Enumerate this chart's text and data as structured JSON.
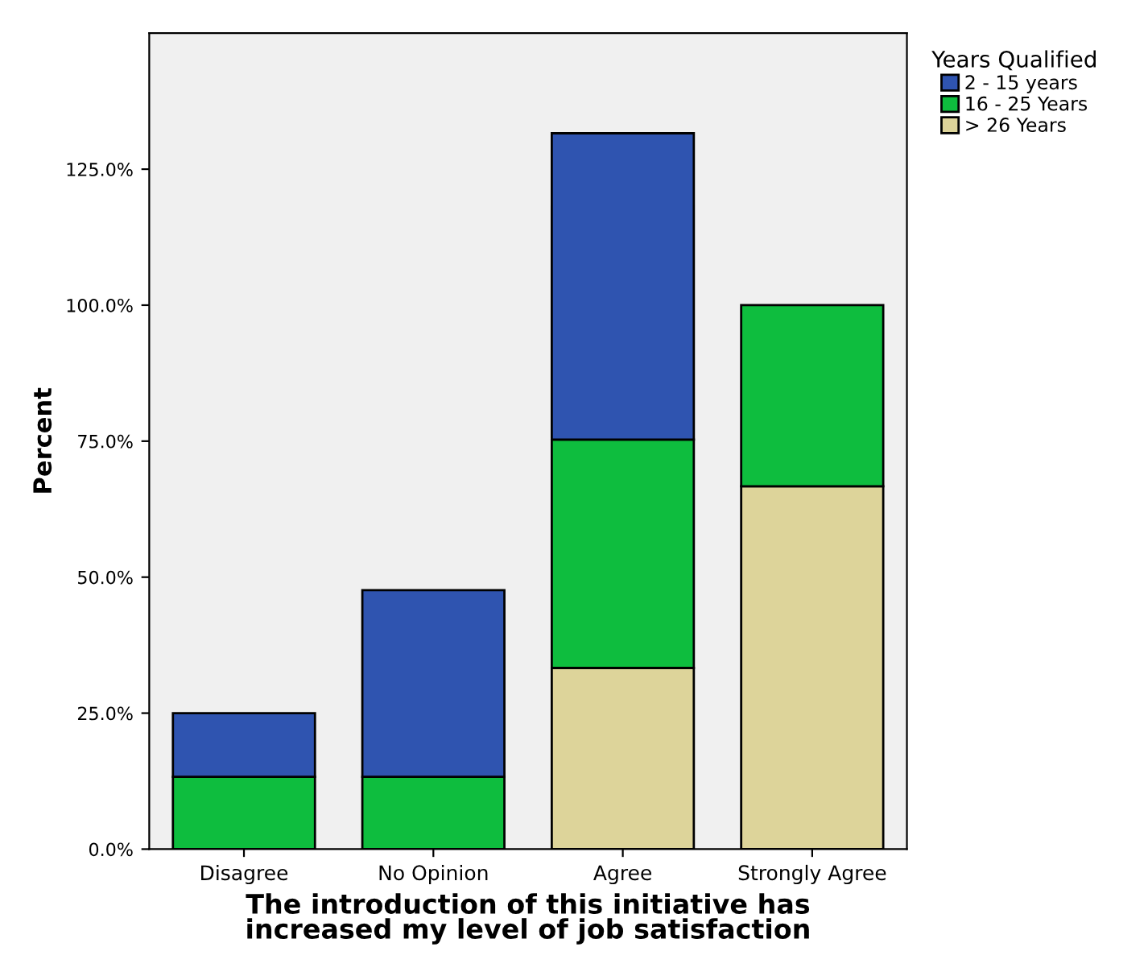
{
  "chart_data": {
    "type": "bar",
    "stacked": true,
    "xlabel": "The introduction of this initiative has\nincreased my level of job satisfaction",
    "ylabel": "Percent",
    "legend_title": "Years Qualified",
    "legend": "top right",
    "categories": [
      "Disagree",
      "No Opinion",
      "Agree",
      "Strongly Agree"
    ],
    "series": [
      {
        "name": "> 26 Years",
        "color": "#ddd49a",
        "values": [
          null,
          null,
          33.3,
          66.7
        ]
      },
      {
        "name": "16 - 25 Years",
        "color": "#0ebd3e",
        "values": [
          13.3,
          13.3,
          42.0,
          33.3
        ]
      },
      {
        "name": "2 - 15 years",
        "color": "#2f54b0",
        "values": [
          11.7,
          34.3,
          56.3,
          null
        ]
      }
    ],
    "ylim": [
      0,
      150
    ],
    "yticks": [
      {
        "value": 0,
        "label": "0.0%"
      },
      {
        "value": 25,
        "label": "25.0%"
      },
      {
        "value": 50,
        "label": "50.0%"
      },
      {
        "value": 75,
        "label": "75.0%"
      },
      {
        "value": 100,
        "label": "100.0%"
      },
      {
        "value": 125,
        "label": "125.0%"
      }
    ],
    "grid": false
  }
}
